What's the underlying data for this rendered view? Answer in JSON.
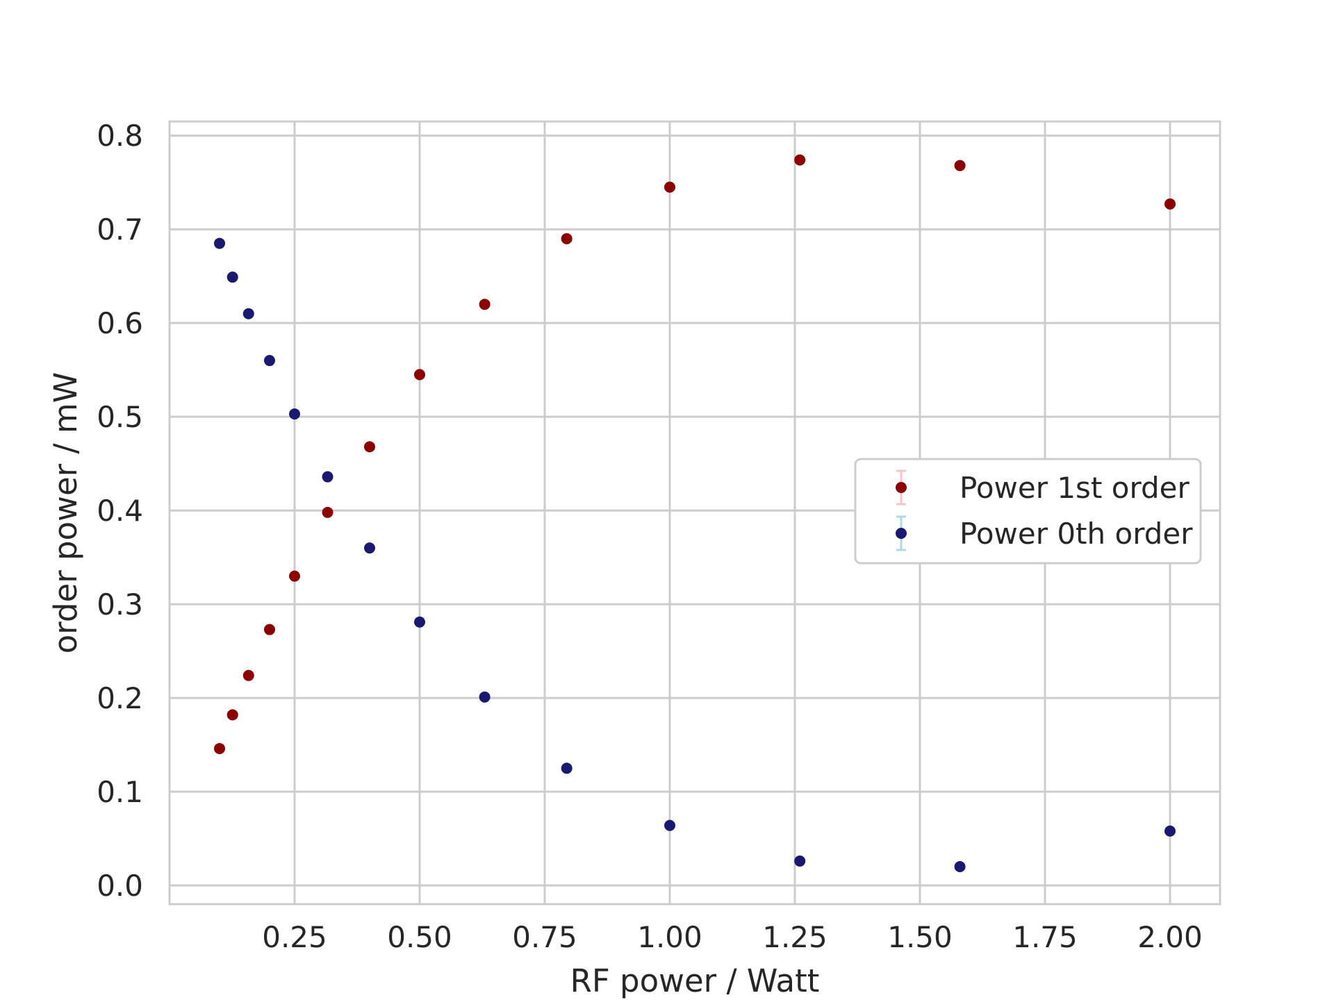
{
  "chart_data": {
    "type": "scatter",
    "title": "",
    "xlabel": "RF power / Watt",
    "ylabel": "order power / mW",
    "xlim": [
      0.0,
      2.1
    ],
    "ylim": [
      -0.02,
      0.815
    ],
    "xticks": [
      0.25,
      0.5,
      0.75,
      1.0,
      1.25,
      1.5,
      1.75,
      2.0
    ],
    "xtick_labels": [
      "0.25",
      "0.50",
      "0.75",
      "1.00",
      "1.25",
      "1.50",
      "1.75",
      "2.00"
    ],
    "yticks": [
      0.0,
      0.1,
      0.2,
      0.3,
      0.4,
      0.5,
      0.6,
      0.7,
      0.8
    ],
    "ytick_labels": [
      "0.0",
      "0.1",
      "0.2",
      "0.3",
      "0.4",
      "0.5",
      "0.6",
      "0.7",
      "0.8"
    ],
    "grid": true,
    "legend_position": "center-right",
    "series": [
      {
        "name": "Power 1st order",
        "color": "#8b0000",
        "errorbar_color": "#ffc0cb",
        "x": [
          0.1,
          0.126,
          0.158,
          0.2,
          0.25,
          0.316,
          0.4,
          0.5,
          0.63,
          0.794,
          1.0,
          1.26,
          1.58,
          2.0
        ],
        "y": [
          0.146,
          0.182,
          0.224,
          0.273,
          0.33,
          0.398,
          0.468,
          0.545,
          0.62,
          0.69,
          0.745,
          0.774,
          0.768,
          0.727
        ]
      },
      {
        "name": "Power 0th order",
        "color": "#191970",
        "errorbar_color": "#add8e6",
        "x": [
          0.1,
          0.126,
          0.158,
          0.2,
          0.25,
          0.316,
          0.4,
          0.5,
          0.63,
          0.794,
          1.0,
          1.26,
          1.58,
          2.0
        ],
        "y": [
          0.685,
          0.649,
          0.61,
          0.56,
          0.503,
          0.436,
          0.36,
          0.281,
          0.201,
          0.125,
          0.064,
          0.026,
          0.02,
          0.058
        ]
      }
    ]
  }
}
